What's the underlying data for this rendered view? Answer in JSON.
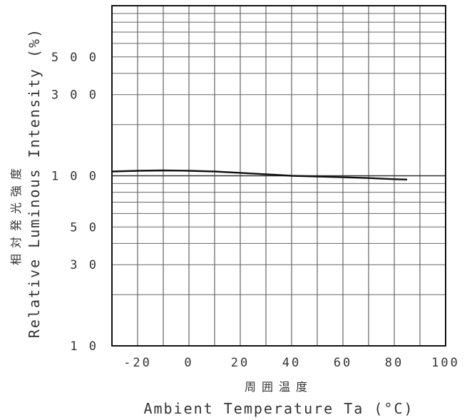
{
  "chart_data": {
    "type": "line",
    "title": "",
    "xlabel": "Ambient Temperature Ta (°C)",
    "xlabel_jp": "周囲温度",
    "ylabel": "Relative Luminous Intensity (%)",
    "ylabel_jp": "相対発光強度",
    "xlim": [
      -30,
      100
    ],
    "ylim": [
      10,
      1000
    ],
    "yscale": "log",
    "x_ticks": [
      -20,
      0,
      20,
      40,
      60,
      80,
      100
    ],
    "y_tick_labels": [
      {
        "value": 10,
        "label": "1 0"
      },
      {
        "value": 30,
        "label": "3 0"
      },
      {
        "value": 50,
        "label": "5 0"
      },
      {
        "value": 100,
        "label": "1 0 0"
      },
      {
        "value": 300,
        "label": "3 0 0"
      },
      {
        "value": 500,
        "label": "5 0 0"
      }
    ],
    "grid": true,
    "series": [
      {
        "x": [
          -30,
          -20,
          -10,
          0,
          10,
          20,
          30,
          40,
          50,
          60,
          70,
          80,
          85
        ],
        "y": [
          106,
          107,
          107.5,
          107,
          106,
          104,
          102,
          100,
          99,
          98,
          97,
          95.5,
          95
        ],
        "color": "#111111"
      }
    ]
  }
}
